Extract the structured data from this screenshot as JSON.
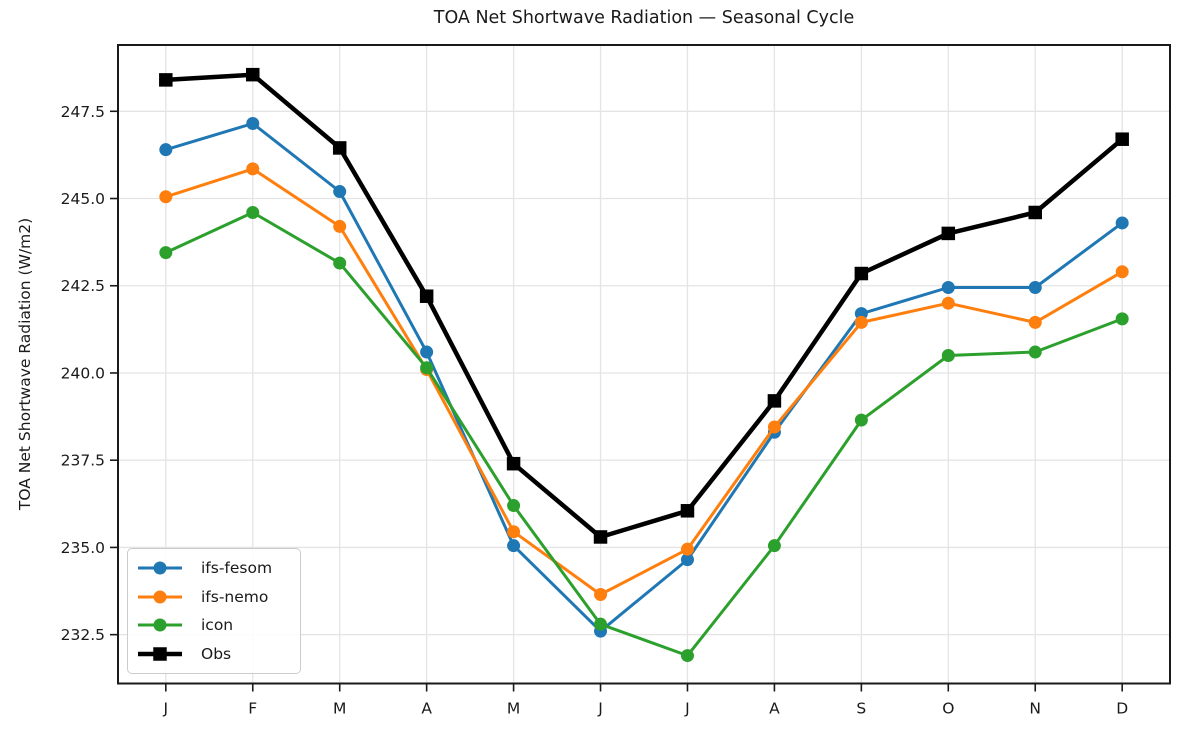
{
  "figure": {
    "title": "TOA Net Shortwave Radiation — Seasonal Cycle",
    "ylabel": "TOA Net Shortwave Radiation (W/m2)"
  },
  "chart_data": {
    "type": "line",
    "title": "TOA Net Shortwave Radiation — Seasonal Cycle",
    "xlabel": "",
    "ylabel": "TOA Net Shortwave Radiation (W/m2)",
    "categories": [
      "J",
      "F",
      "M",
      "A",
      "M",
      "J",
      "J",
      "A",
      "S",
      "O",
      "N",
      "D"
    ],
    "yticks": [
      232.5,
      235.0,
      237.5,
      240.0,
      242.5,
      245.0,
      247.5
    ],
    "ytick_labels": [
      "232.5",
      "235.0",
      "237.5",
      "240.0",
      "242.5",
      "245.0",
      "247.5"
    ],
    "ylim": [
      231.1,
      249.4
    ],
    "grid": true,
    "legend_position": "lower left",
    "series": [
      {
        "name": "ifs-fesom",
        "color": "#1f77b4",
        "marker": "circle",
        "linewidth": 3,
        "values": [
          246.4,
          247.15,
          245.2,
          240.6,
          235.05,
          232.6,
          234.65,
          238.3,
          241.7,
          242.45,
          242.45,
          244.3
        ]
      },
      {
        "name": "ifs-nemo",
        "color": "#ff7f0e",
        "marker": "circle",
        "linewidth": 3,
        "values": [
          245.05,
          245.85,
          244.2,
          240.1,
          235.45,
          233.65,
          234.95,
          238.45,
          241.45,
          242.0,
          241.45,
          242.9
        ]
      },
      {
        "name": "icon",
        "color": "#2ca02c",
        "marker": "circle",
        "linewidth": 3,
        "values": [
          243.45,
          244.6,
          243.15,
          240.15,
          236.2,
          232.8,
          231.9,
          235.05,
          238.65,
          240.5,
          240.6,
          241.55
        ]
      },
      {
        "name": "Obs",
        "color": "#000000",
        "marker": "square",
        "linewidth": 4.5,
        "values": [
          248.4,
          248.55,
          246.45,
          242.2,
          237.4,
          235.3,
          236.05,
          239.2,
          242.85,
          244.0,
          244.6,
          246.7
        ]
      }
    ],
    "style": {
      "grid_color": "#e4e4e4",
      "spine_color": "#1a1a1a",
      "text_color": "#1a1a1a",
      "background": "#ffffff"
    }
  }
}
